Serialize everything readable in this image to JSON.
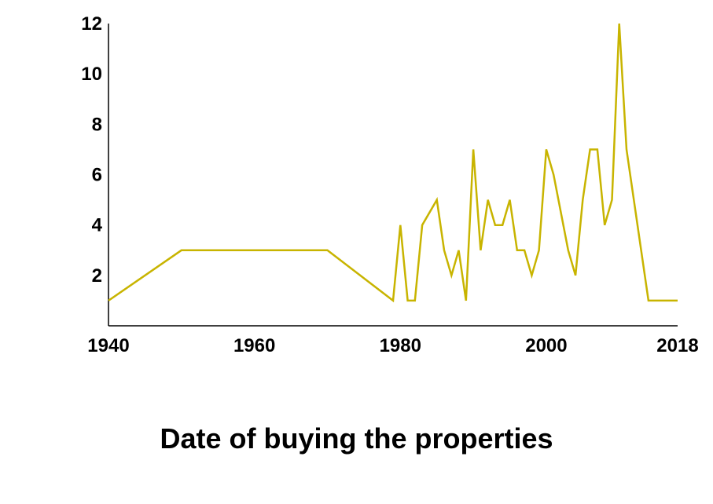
{
  "caption": "Date of buying the properties",
  "colors": {
    "line": "#C8B400",
    "axis": "#000000",
    "text": "#000000"
  },
  "chart_data": {
    "type": "line",
    "title": "",
    "xlabel": "Date of buying the properties",
    "ylabel": "",
    "xlim": [
      1940,
      2018
    ],
    "ylim": [
      0,
      12
    ],
    "grid": false,
    "x_ticks": [
      1940,
      1960,
      1980,
      2000,
      2018
    ],
    "y_ticks": [
      2,
      4,
      6,
      8,
      10,
      12
    ],
    "series": [
      {
        "x": [
          1940,
          1950,
          1970,
          1979,
          1980,
          1981,
          1982,
          1983,
          1985,
          1986,
          1987,
          1988,
          1989,
          1990,
          1991,
          1992,
          1993,
          1994,
          1995,
          1996,
          1997,
          1998,
          1999,
          2000,
          2001,
          2003,
          2004,
          2005,
          2006,
          2007,
          2008,
          2009,
          2010,
          2011,
          2013,
          2014,
          2018
        ],
        "values": [
          1,
          3,
          3,
          1,
          4,
          1,
          1,
          4,
          5,
          3,
          2,
          3,
          1,
          7,
          3,
          5,
          4,
          4,
          5,
          3,
          3,
          2,
          3,
          7,
          6,
          3,
          2,
          5,
          7,
          7,
          4,
          5,
          12,
          7,
          3,
          1,
          1
        ]
      }
    ]
  }
}
